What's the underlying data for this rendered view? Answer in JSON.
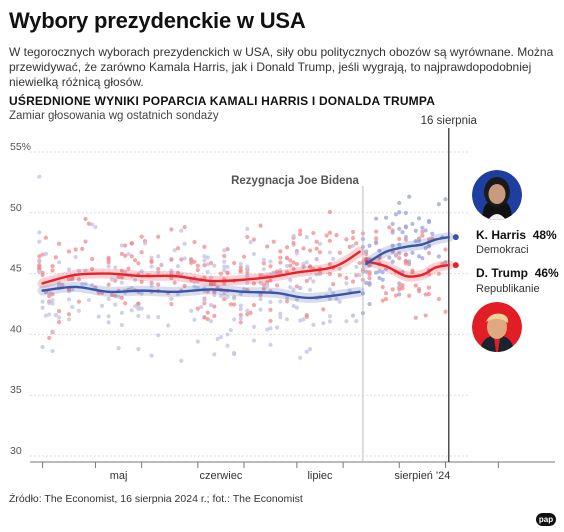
{
  "header": {
    "title": "Wybory prezydenckie w USA",
    "lead": "W tegorocznych wyborach prezydenckich w USA, siły obu politycznych obozów są wyrównane. Można przewidywać, że zarówno Kamala Harris, jak i Donald Trump, jeśli wygrają, to najprawdopodobniej niewielką różnicą głosów."
  },
  "footer": {
    "source": "Źródło: The Economist, 16 sierpnia 2024 r.; fot.: The Economist",
    "logo": "pap"
  },
  "candidates": {
    "harris": {
      "label": "K. Harris",
      "value": "48%",
      "party": "Demokraci",
      "color": "#3a55a8",
      "photo_icon": "kamala-harris-portrait"
    },
    "trump": {
      "label": "D. Trump",
      "value": "46%",
      "party": "Republikanie",
      "color": "#e8202a",
      "photo_icon": "donald-trump-portrait"
    }
  },
  "chart_data": {
    "type": "line",
    "title": "UŚREDNIONE WYNIKI POPARCIA KAMALI HARRIS I DONALDA TRUMPA",
    "subtitle": "Zamiar głosowania wg ostatnich sondaży",
    "ylabel": "",
    "ylim": [
      30,
      55
    ],
    "y_ticks": [
      "55%",
      "50",
      "45",
      "40",
      "35",
      "30"
    ],
    "x_ticks": [
      "maj",
      "czerwiec",
      "lipiec",
      "sierpień '24"
    ],
    "x_range": [
      "2024-04-13",
      "2024-08-20"
    ],
    "grid": true,
    "annotations": {
      "biden_dropout": {
        "label": "Rezygnacja Joe Bidena",
        "date": "2024-07-21"
      },
      "current": {
        "label": "16 sierpnia",
        "date": "2024-08-16"
      }
    },
    "series": [
      {
        "name": "D. Trump",
        "color": "#e8202a",
        "points": [
          [
            "2024-04-15",
            44.2
          ],
          [
            "2024-04-25",
            44.9
          ],
          [
            "2024-05-05",
            45.0
          ],
          [
            "2024-05-15",
            44.8
          ],
          [
            "2024-05-25",
            44.8
          ],
          [
            "2024-06-05",
            44.4
          ],
          [
            "2024-06-15",
            44.5
          ],
          [
            "2024-06-25",
            44.8
          ],
          [
            "2024-07-01",
            45.1
          ],
          [
            "2024-07-10",
            45.4
          ],
          [
            "2024-07-15",
            45.9
          ],
          [
            "2024-07-20",
            46.8
          ],
          [
            "2024-07-22",
            46.0
          ],
          [
            "2024-07-28",
            45.6
          ],
          [
            "2024-08-03",
            44.8
          ],
          [
            "2024-08-08",
            44.9
          ],
          [
            "2024-08-12",
            45.5
          ],
          [
            "2024-08-16",
            45.7
          ]
        ]
      },
      {
        "name": "K. Harris",
        "color": "#3a55a8",
        "points": [
          [
            "2024-04-15",
            43.6
          ],
          [
            "2024-04-25",
            43.9
          ],
          [
            "2024-05-05",
            43.5
          ],
          [
            "2024-05-15",
            43.6
          ],
          [
            "2024-05-25",
            43.5
          ],
          [
            "2024-06-05",
            43.7
          ],
          [
            "2024-06-15",
            43.5
          ],
          [
            "2024-06-25",
            43.4
          ],
          [
            "2024-07-05",
            43.0
          ],
          [
            "2024-07-20",
            43.5
          ],
          [
            "2024-07-22",
            45.8
          ],
          [
            "2024-07-28",
            46.8
          ],
          [
            "2024-08-03",
            47.2
          ],
          [
            "2024-08-08",
            47.4
          ],
          [
            "2024-08-12",
            47.8
          ],
          [
            "2024-08-16",
            48.0
          ]
        ]
      }
    ]
  }
}
